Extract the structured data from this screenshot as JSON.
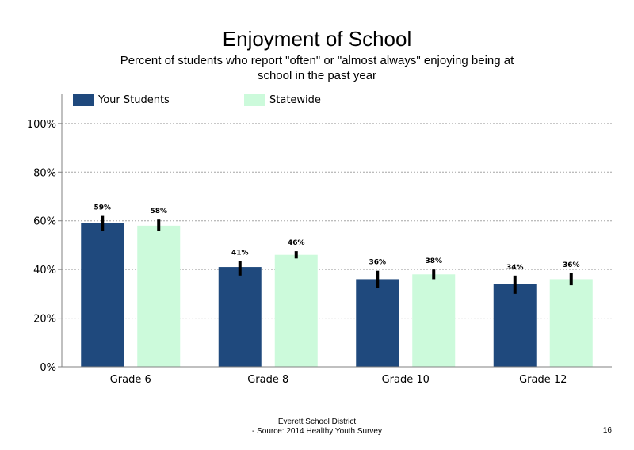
{
  "slide": {
    "title": "Enjoyment of School",
    "subtitle": "Percent of students  who report \"often\" or \"almost always\" enjoying being at school in the past year",
    "footer_line1": "Everett School District",
    "footer_line2": "- Source: 2014 Healthy  Youth Survey",
    "page_number": "16"
  },
  "chart_data": {
    "type": "bar",
    "title": "Enjoyment of School",
    "categories": [
      "Grade 6",
      "Grade 8",
      "Grade 10",
      "Grade 12"
    ],
    "series": [
      {
        "name": "Your Students",
        "color": "#1f497d",
        "values": [
          59,
          41,
          36,
          34
        ],
        "labels": [
          "59%",
          "41%",
          "36%",
          "34%"
        ],
        "error_low": [
          56,
          37.5,
          32.5,
          30
        ],
        "error_high": [
          62,
          43.5,
          39.5,
          37.5
        ]
      },
      {
        "name": "Statewide",
        "color": "#ccfadb",
        "values": [
          58,
          46,
          38,
          36
        ],
        "labels": [
          "58%",
          "46%",
          "38%",
          "36%"
        ],
        "error_low": [
          56,
          44.5,
          36,
          33.5
        ],
        "error_high": [
          60.5,
          47.5,
          40,
          38.5
        ]
      }
    ],
    "y_ticks": [
      0,
      20,
      40,
      60,
      80,
      100
    ],
    "y_tick_labels": [
      "0%",
      "20%",
      "40%",
      "60%",
      "80%",
      "100%"
    ],
    "ylim": [
      0,
      112
    ],
    "grid": true,
    "legend_position": "top"
  }
}
